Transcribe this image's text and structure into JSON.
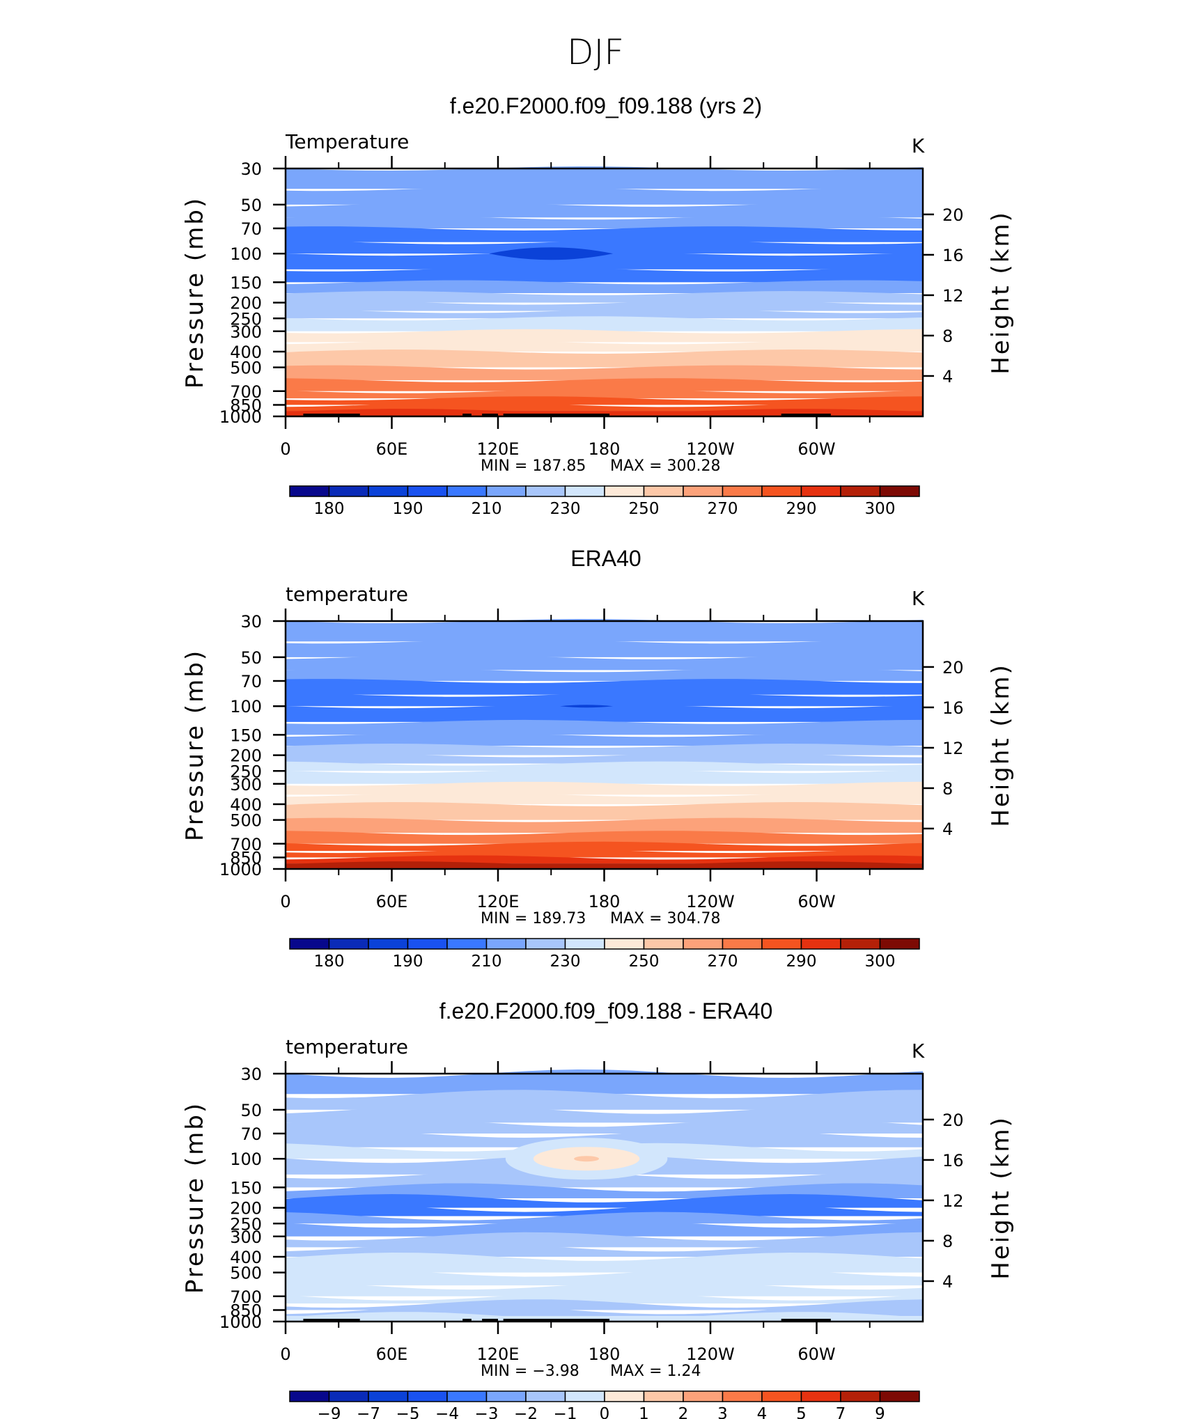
{
  "figure": {
    "title": "DJF"
  },
  "colors": {
    "temperature_scale": [
      "#08088c",
      "#0a2bb8",
      "#0b42d8",
      "#1a52f0",
      "#3a78ff",
      "#7aa6fc",
      "#a8c6fb",
      "#d2e6fc",
      "#fde9d8",
      "#fdc8a8",
      "#fca27a",
      "#fa7a48",
      "#f55420",
      "#e63210",
      "#b42008",
      "#7d0a04"
    ],
    "difference_scale": [
      "#08088c",
      "#0a2bb8",
      "#0b42d8",
      "#1a52f0",
      "#3a78ff",
      "#7aa6fc",
      "#a8c6fb",
      "#d2e6fc",
      "#fde9d8",
      "#fdc8a8",
      "#fca27a",
      "#fa7a48",
      "#f55420",
      "#e63210",
      "#b42008",
      "#7d0a04"
    ],
    "topography": "#000000"
  },
  "chart_data": [
    {
      "type": "heatmap",
      "title": "f.e20.F2000.f09_f09.188 (yrs 2)",
      "left_string": "Temperature",
      "units": "K",
      "ylabel": "Pressure (mb)",
      "ylabel_right": "Height (km)",
      "xlabel": "",
      "xlim": [
        0,
        360
      ],
      "x_ticks": [
        "0",
        "60E",
        "120E",
        "180",
        "120W",
        "60W"
      ],
      "y_ticks": [
        "30",
        "50",
        "70",
        "100",
        "150",
        "200",
        "250",
        "300",
        "400",
        "500",
        "700",
        "850",
        "1000"
      ],
      "y_ticks_right": [
        "20",
        "16",
        "12",
        "8",
        "4"
      ],
      "ylim": [
        1000,
        30
      ],
      "y_scale": "log",
      "min_label": "MIN  =  187.85",
      "max_label": "MAX  =  300.28",
      "min": 187.85,
      "max": 300.28,
      "colorbar_labels": [
        "180",
        "190",
        "210",
        "230",
        "250",
        "270",
        "290",
        "300"
      ],
      "levels": [
        175,
        180,
        185,
        190,
        200,
        210,
        220,
        230,
        240,
        250,
        260,
        270,
        280,
        290,
        295,
        300
      ],
      "pressure_levels": [
        30,
        40,
        50,
        60,
        70,
        85,
        100,
        125,
        150,
        175,
        200,
        225,
        250,
        300,
        350,
        400,
        500,
        600,
        700,
        775,
        850,
        925,
        1000
      ],
      "zonal_mean_profile": [
        208,
        212,
        214,
        212,
        209,
        206,
        205,
        207,
        212,
        218,
        222,
        226,
        230,
        236,
        244,
        251,
        261,
        269,
        276,
        280,
        285,
        288,
        292
      ],
      "cold_core": {
        "lon_range": [
          115,
          185
        ],
        "pressure": 100,
        "value": 187.85
      },
      "topography_blocks_lon": [
        [
          10,
          42
        ],
        [
          100,
          105
        ],
        [
          111,
          120
        ],
        [
          123,
          183
        ],
        [
          280,
          308
        ]
      ]
    },
    {
      "type": "heatmap",
      "title": "ERA40",
      "left_string": "temperature",
      "units": "K",
      "ylabel": "Pressure (mb)",
      "ylabel_right": "Height (km)",
      "xlabel": "",
      "xlim": [
        0,
        360
      ],
      "x_ticks": [
        "0",
        "60E",
        "120E",
        "180",
        "120W",
        "60W"
      ],
      "y_ticks": [
        "30",
        "50",
        "70",
        "100",
        "150",
        "200",
        "250",
        "300",
        "400",
        "500",
        "700",
        "850",
        "1000"
      ],
      "y_ticks_right": [
        "20",
        "16",
        "12",
        "8",
        "4"
      ],
      "ylim": [
        1000,
        30
      ],
      "y_scale": "log",
      "min_label": "MIN  =  189.73",
      "max_label": "MAX  =  304.78",
      "min": 189.73,
      "max": 304.78,
      "colorbar_labels": [
        "180",
        "190",
        "210",
        "230",
        "250",
        "270",
        "290",
        "300"
      ],
      "levels": [
        175,
        180,
        185,
        190,
        200,
        210,
        220,
        230,
        240,
        250,
        260,
        270,
        280,
        290,
        295,
        300
      ],
      "pressure_levels": [
        30,
        40,
        50,
        60,
        70,
        85,
        100,
        125,
        150,
        175,
        200,
        225,
        250,
        300,
        350,
        400,
        500,
        600,
        700,
        775,
        850,
        925,
        1000
      ],
      "zonal_mean_profile": [
        210,
        214,
        216,
        213,
        210,
        207,
        206,
        208,
        213,
        219,
        224,
        228,
        232,
        238,
        246,
        253,
        263,
        271,
        279,
        284,
        289,
        293,
        297
      ],
      "cold_core": {
        "lon_range": [
          155,
          185
        ],
        "pressure": 100,
        "value": 189.73
      },
      "topography_blocks_lon": []
    },
    {
      "type": "heatmap",
      "title": "f.e20.F2000.f09_f09.188 - ERA40",
      "left_string": "temperature",
      "units": "K",
      "ylabel": "Pressure (mb)",
      "ylabel_right": "Height (km)",
      "xlabel": "",
      "xlim": [
        0,
        360
      ],
      "x_ticks": [
        "0",
        "60E",
        "120E",
        "180",
        "120W",
        "60W"
      ],
      "y_ticks": [
        "30",
        "50",
        "70",
        "100",
        "150",
        "200",
        "250",
        "300",
        "400",
        "500",
        "700",
        "850",
        "1000"
      ],
      "y_ticks_right": [
        "20",
        "16",
        "12",
        "8",
        "4"
      ],
      "ylim": [
        1000,
        30
      ],
      "y_scale": "log",
      "min_label": "MIN  =   −3.98",
      "max_label": "MAX  =     1.24",
      "min": -3.98,
      "max": 1.24,
      "colorbar_labels": [
        "−9",
        "−7",
        "−5",
        "−4",
        "−3",
        "−2",
        "−1",
        "0",
        "1",
        "2",
        "3",
        "4",
        "5",
        "7",
        "9"
      ],
      "levels": [
        -11,
        -9,
        -7,
        -5,
        -4,
        -3,
        -2,
        -1,
        0,
        1,
        2,
        3,
        4,
        5,
        7,
        9
      ],
      "pressure_levels": [
        30,
        40,
        50,
        60,
        70,
        85,
        100,
        125,
        150,
        175,
        200,
        225,
        250,
        300,
        350,
        400,
        500,
        600,
        700,
        775,
        850,
        925,
        1000
      ],
      "zonal_mean_profile": [
        -2.2,
        -2.0,
        -1.6,
        -1.5,
        -1.2,
        -1.0,
        -0.8,
        -1.3,
        -2.2,
        -3.0,
        -3.3,
        -3.0,
        -2.3,
        -1.8,
        -1.5,
        -1.2,
        -0.6,
        -0.3,
        -0.4,
        -1.2,
        -1.3,
        -1.2,
        -0.8
      ],
      "warm_anomaly": {
        "lon_range": [
          140,
          200
        ],
        "pressure": 100,
        "value": 1.24
      },
      "topography_blocks_lon": [
        [
          10,
          42
        ],
        [
          100,
          105
        ],
        [
          111,
          120
        ],
        [
          123,
          183
        ],
        [
          280,
          308
        ]
      ]
    }
  ]
}
